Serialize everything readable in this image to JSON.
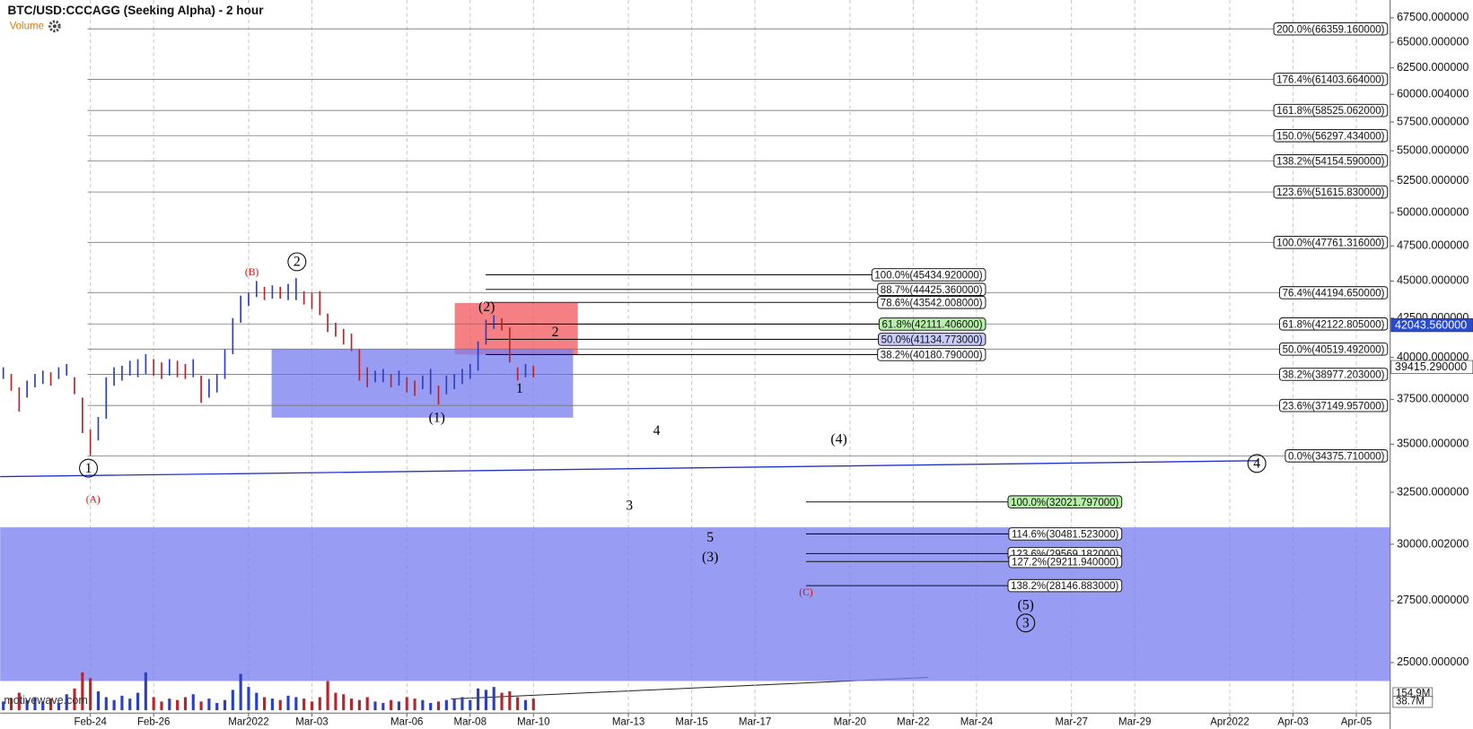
{
  "chart_data": {
    "type": "hilo",
    "title": "BTC/USD:CCCAGG (Seeking Alpha) - 2 hour",
    "indicator": "Volume",
    "watermark": "motivewave.com",
    "log_scale": true,
    "up_color": "#2b3fc4",
    "down_color": "#b8242c",
    "xlim": [
      -2.85,
      41.07
    ],
    "ylim": [
      23130,
      69380
    ],
    "xticks": [
      {
        "value": 0,
        "label": "Feb-24"
      },
      {
        "value": 2,
        "label": "Feb-26"
      },
      {
        "value": 5,
        "label": "Mar2022"
      },
      {
        "value": 7,
        "label": "Mar-03"
      },
      {
        "value": 10,
        "label": "Mar-06"
      },
      {
        "value": 12,
        "label": "Mar-08"
      },
      {
        "value": 14,
        "label": "Mar-10"
      },
      {
        "value": 17,
        "label": "Mar-13"
      },
      {
        "value": 19,
        "label": "Mar-15"
      },
      {
        "value": 21,
        "label": "Mar-17"
      },
      {
        "value": 24,
        "label": "Mar-20"
      },
      {
        "value": 26,
        "label": "Mar-22"
      },
      {
        "value": 28,
        "label": "Mar-24"
      },
      {
        "value": 31,
        "label": "Mar-27"
      },
      {
        "value": 33,
        "label": "Mar-29"
      },
      {
        "value": 36,
        "label": "Apr2022"
      },
      {
        "value": 38,
        "label": "Apr-03"
      },
      {
        "value": 40,
        "label": "Apr-05"
      }
    ],
    "yticks": [
      {
        "value": 67500,
        "label": "67500.000000"
      },
      {
        "value": 65000,
        "label": "65000.000000"
      },
      {
        "value": 62500,
        "label": "62500.000000"
      },
      {
        "value": 60000.004,
        "label": "60000.004000"
      },
      {
        "value": 57500,
        "label": "57500.000000"
      },
      {
        "value": 55000,
        "label": "55000.000000"
      },
      {
        "value": 52500,
        "label": "52500.000000"
      },
      {
        "value": 50000,
        "label": "50000.000000"
      },
      {
        "value": 47500,
        "label": "47500.000000"
      },
      {
        "value": 45000,
        "label": "45000.000000"
      },
      {
        "value": 42500,
        "label": "42500.000000"
      },
      {
        "value": 40000,
        "label": "40000.000000"
      },
      {
        "value": 37500,
        "label": "37500.000000"
      },
      {
        "value": 35000,
        "label": "35000.000000"
      },
      {
        "value": 32500,
        "label": "32500.000000"
      },
      {
        "value": 30000.002,
        "label": "30000.002000"
      },
      {
        "value": 27500,
        "label": "27500.000000"
      },
      {
        "value": 25000,
        "label": "25000.000000"
      }
    ],
    "x": [
      -2.75,
      -2.5,
      -2.25,
      -2,
      -1.75,
      -1.5,
      -1.25,
      -1,
      -0.75,
      -0.5,
      -0.25,
      0,
      0.25,
      0.5,
      0.75,
      1,
      1.25,
      1.5,
      1.75,
      2,
      2.25,
      2.5,
      2.75,
      3,
      3.25,
      3.5,
      3.75,
      4,
      4.25,
      4.5,
      4.75,
      5,
      5.25,
      5.5,
      5.75,
      6,
      6.25,
      6.5,
      6.75,
      7,
      7.25,
      7.5,
      7.75,
      8,
      8.25,
      8.5,
      8.75,
      9,
      9.25,
      9.5,
      9.75,
      10,
      10.25,
      10.5,
      10.75,
      11,
      11.25,
      11.5,
      11.75,
      12,
      12.25,
      12.5,
      12.75,
      13,
      13.25,
      13.5,
      13.75,
      14
    ],
    "high": [
      39400,
      39000,
      38200,
      38600,
      39000,
      39200,
      39100,
      39400,
      39600,
      38800,
      37600,
      35800,
      36500,
      38800,
      39400,
      39500,
      39800,
      39900,
      40200,
      39900,
      39700,
      39900,
      39800,
      39600,
      39900,
      38900,
      38700,
      39000,
      40500,
      42500,
      44000,
      44200,
      45000,
      44600,
      44700,
      44600,
      44800,
      45200,
      44300,
      44200,
      44300,
      42800,
      42200,
      41800,
      41500,
      40500,
      39400,
      39200,
      39300,
      39000,
      39200,
      38800,
      38600,
      38900,
      39300,
      38300,
      38900,
      39000,
      39300,
      39600,
      41000,
      42400,
      42700,
      42500,
      41900,
      39400,
      39600,
      39500
    ],
    "low": [
      38700,
      38000,
      36800,
      37600,
      38200,
      38400,
      38300,
      38700,
      38900,
      37800,
      35600,
      34400,
      35200,
      36400,
      38300,
      38600,
      38900,
      38800,
      39000,
      38900,
      38700,
      38900,
      38800,
      38700,
      38800,
      37300,
      37600,
      37900,
      38700,
      40200,
      42200,
      43300,
      43900,
      43700,
      43800,
      43800,
      43700,
      43700,
      43400,
      43100,
      42700,
      41600,
      41300,
      40800,
      40400,
      38600,
      38200,
      38500,
      38500,
      38200,
      38300,
      37900,
      37700,
      38100,
      37800,
      37200,
      37800,
      38100,
      38400,
      38700,
      39200,
      40800,
      41800,
      41700,
      39700,
      38600,
      38800,
      38800
    ],
    "vlim": [
      0,
      400
    ],
    "volume": [
      60,
      80,
      120,
      70,
      90,
      60,
      80,
      50,
      110,
      150,
      260,
      220,
      130,
      90,
      70,
      100,
      80,
      120,
      260,
      90,
      60,
      80,
      70,
      90,
      110,
      60,
      80,
      50,
      70,
      140,
      250,
      160,
      120,
      90,
      80,
      70,
      100,
      90,
      80,
      60,
      90,
      200,
      120,
      110,
      80,
      70,
      90,
      60,
      50,
      70,
      60,
      90,
      80,
      70,
      50,
      60,
      70,
      80,
      90,
      70,
      150,
      140,
      160,
      120,
      130,
      90,
      70,
      80
    ],
    "volume_labels": [
      "154.9M",
      "38.7M"
    ],
    "zones": [
      {
        "color": "#f0555a",
        "ylim": [
          40180,
          43500
        ]
      },
      {
        "color": "#7b82ef",
        "ylim": [
          36460,
          40520
        ]
      },
      {
        "color": "#7b82ef",
        "ylim": [
          24300,
          30790
        ]
      }
    ],
    "trendline": {
      "color": "#2233cc",
      "x": [
        -2.85,
        36.91
      ],
      "values": [
        33290,
        34120
      ]
    },
    "fib_sets": [
      {
        "levels": [
          {
            "value": 66359.16,
            "label": "200.0%(66359.160000)"
          },
          {
            "value": 61403.664,
            "label": "176.4%(61403.664000)"
          },
          {
            "value": 58525.062,
            "label": "161.8%(58525.062000)"
          },
          {
            "value": 56297.434,
            "label": "150.0%(56297.434000)"
          },
          {
            "value": 54154.59,
            "label": "138.2%(54154.590000)"
          },
          {
            "value": 51615.83,
            "label": "123.6%(51615.830000)"
          },
          {
            "value": 47761.316,
            "label": "100.0%(47761.316000)"
          },
          {
            "value": 44194.65,
            "label": "76.4%(44194.650000)"
          },
          {
            "value": 42122.805,
            "label": "61.8%(42122.805000)"
          },
          {
            "value": 40519.492,
            "label": "50.0%(40519.492000)"
          },
          {
            "value": 38977.203,
            "label": "38.2%(38977.203000)"
          },
          {
            "value": 37149.957,
            "label": "23.6%(37149.957000)"
          },
          {
            "value": 34375.71,
            "label": "0.0%(34375.710000)"
          }
        ]
      },
      {
        "levels": [
          {
            "value": 45434.92,
            "label": "100.0%(45434.920000)"
          },
          {
            "value": 44425.36,
            "label": "88.7%(44425.360000)"
          },
          {
            "value": 43542.008,
            "label": "78.6%(43542.008000)"
          },
          {
            "value": 42111.406,
            "label": "61.8%(42111.406000)",
            "color": "#b6f0a8"
          },
          {
            "value": 41134.773,
            "label": "50.0%(41134.773000)",
            "color": "#c9ccfb"
          },
          {
            "value": 40180.79,
            "label": "38.2%(40180.790000)"
          }
        ]
      },
      {
        "levels": [
          {
            "value": 32021.797,
            "label": "100.0%(32021.797000)",
            "color": "#b6f0a8"
          },
          {
            "value": 30481.523,
            "label": "114.6%(30481.523000)"
          },
          {
            "value": 29569.182,
            "label": "123.6%(29569.182000)"
          },
          {
            "value": 29211.94,
            "label": "127.2%(29211.940000)"
          },
          {
            "value": 28146.883,
            "label": "138.2%(28146.883000)"
          }
        ]
      }
    ],
    "price_markers": [
      {
        "value": 42043.56,
        "label": "42043.560000",
        "color": "#2a4bd0"
      },
      {
        "value": 39415.29,
        "label": "39415.290000",
        "color": "#ffffff"
      }
    ],
    "wave_labels": [
      {
        "text": "1",
        "circled": true,
        "color": "#000000"
      },
      {
        "text": "(A)",
        "color": "#d01010"
      },
      {
        "text": "(B)",
        "color": "#d01010"
      },
      {
        "text": "2",
        "circled": true,
        "color": "#000000"
      },
      {
        "text": "(1)",
        "color": "#000000"
      },
      {
        "text": "(2)",
        "color": "#000000"
      },
      {
        "text": "2",
        "color": "#000000"
      },
      {
        "text": "1",
        "color": "#000000"
      },
      {
        "text": "4",
        "color": "#000000"
      },
      {
        "text": "(4)",
        "color": "#000000"
      },
      {
        "text": "4",
        "circled": true,
        "color": "#000000"
      },
      {
        "text": "3",
        "color": "#000000"
      },
      {
        "text": "5",
        "color": "#000000"
      },
      {
        "text": "(3)",
        "color": "#000000"
      },
      {
        "text": "(C)",
        "color": "#d01010"
      },
      {
        "text": "(5)",
        "color": "#000000"
      },
      {
        "text": "3",
        "circled": true,
        "color": "#000000"
      }
    ]
  }
}
